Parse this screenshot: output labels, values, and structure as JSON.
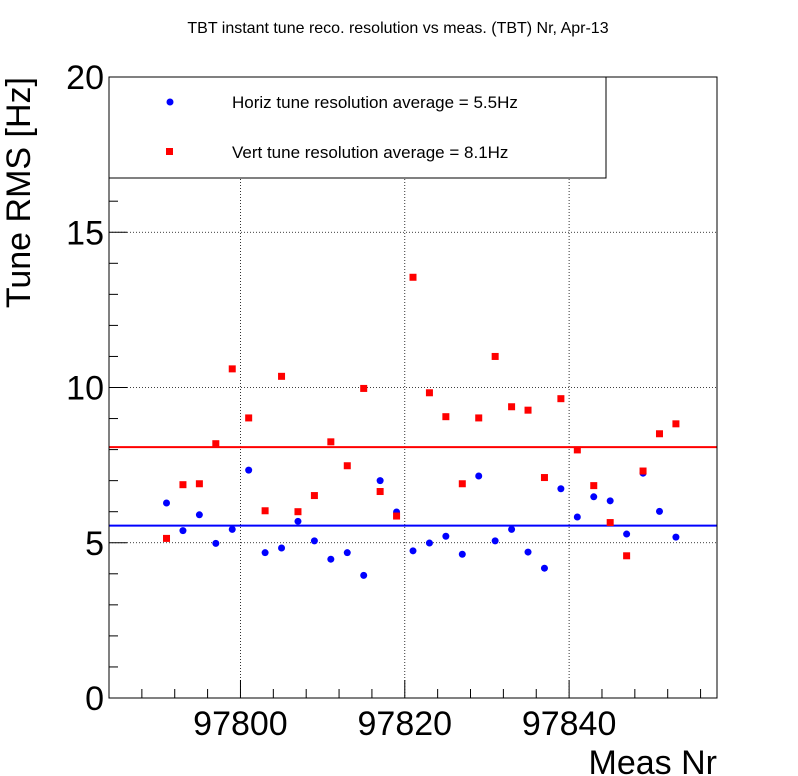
{
  "chart_data": {
    "type": "scatter",
    "title": "TBT instant tune reco. resolution vs meas. (TBT) Nr, Apr-13",
    "xlabel": "Meas Nr",
    "ylabel": "Tune RMS [Hz]",
    "xlim": [
      97784,
      97858
    ],
    "ylim": [
      0,
      20
    ],
    "x_ticks": [
      97800,
      97820,
      97840
    ],
    "y_ticks": [
      0,
      5,
      10,
      15,
      20
    ],
    "grid": true,
    "legend_position": "top-left",
    "series": [
      {
        "name": "Horiz tune resolution average = 5.5Hz",
        "color": "#0000ff",
        "marker": "circle",
        "average": 5.55,
        "x": [
          97791,
          97793,
          97795,
          97797,
          97799,
          97801,
          97803,
          97805,
          97807,
          97809,
          97811,
          97813,
          97815,
          97817,
          97819,
          97821,
          97823,
          97825,
          97827,
          97829,
          97831,
          97833,
          97835,
          97837,
          97839,
          97841,
          97843,
          97845,
          97847,
          97849,
          97851,
          97853
        ],
        "y": [
          6.28,
          5.39,
          5.9,
          4.98,
          5.43,
          7.34,
          4.68,
          4.83,
          5.69,
          5.06,
          4.47,
          4.68,
          3.95,
          7.0,
          5.99,
          4.74,
          4.99,
          5.21,
          4.63,
          7.15,
          5.06,
          5.43,
          4.7,
          4.18,
          6.74,
          5.83,
          6.48,
          6.35,
          5.28,
          7.24,
          6.01,
          5.18
        ]
      },
      {
        "name": "Vert tune resolution average = 8.1Hz",
        "color": "#ff0000",
        "marker": "square",
        "average": 8.08,
        "x": [
          97791,
          97793,
          97795,
          97797,
          97799,
          97801,
          97803,
          97805,
          97807,
          97809,
          97811,
          97813,
          97815,
          97817,
          97819,
          97821,
          97823,
          97825,
          97827,
          97829,
          97831,
          97833,
          97835,
          97837,
          97839,
          97841,
          97843,
          97845,
          97847,
          97849,
          97851,
          97853
        ],
        "y": [
          5.14,
          6.87,
          6.9,
          8.19,
          10.6,
          9.02,
          6.03,
          10.36,
          6.0,
          6.52,
          8.25,
          7.48,
          9.97,
          6.65,
          5.86,
          13.55,
          9.83,
          9.06,
          6.9,
          9.02,
          11.0,
          9.38,
          9.27,
          7.1,
          9.64,
          7.99,
          6.84,
          5.65,
          4.58,
          7.31,
          8.51,
          8.83
        ]
      }
    ]
  }
}
